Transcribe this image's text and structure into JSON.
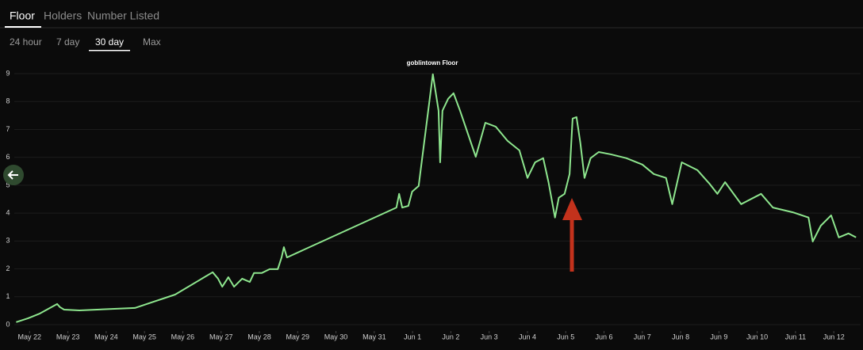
{
  "tabs": [
    "Floor",
    "Holders",
    "Number Listed"
  ],
  "active_tab": 0,
  "ranges": [
    "24 hour",
    "7 day",
    "30 day",
    "Max"
  ],
  "active_range": 2,
  "chart_data": {
    "type": "line",
    "title": "goblintown Floor",
    "color": "#8ee68e",
    "grid": true,
    "x": [
      21.65,
      21.96,
      22.27,
      22.72,
      22.79,
      22.9,
      23.3,
      24.75,
      25.8,
      26.78,
      26.92,
      27.03,
      27.19,
      27.34,
      27.55,
      27.75,
      27.86,
      28.06,
      28.27,
      28.48,
      28.58,
      28.64,
      28.72,
      31.58,
      31.65,
      31.73,
      31.89,
      31.99,
      32.16,
      32.53,
      32.68,
      32.72,
      32.78,
      32.93,
      33.07,
      33.24,
      33.65,
      33.9,
      34.17,
      34.48,
      34.79,
      35.0,
      35.2,
      35.41,
      35.55,
      35.72,
      35.82,
      35.97,
      36.1,
      36.18,
      36.28,
      36.38,
      36.49,
      36.65,
      36.86,
      37.17,
      37.58,
      38.0,
      38.3,
      38.62,
      38.78,
      39.03,
      39.44,
      39.75,
      39.96,
      40.16,
      40.58,
      41.1,
      41.41,
      41.93,
      42.34,
      42.45,
      42.66,
      42.93,
      43.13,
      43.38,
      43.58
    ],
    "values": [
      0.09,
      0.23,
      0.4,
      0.74,
      0.63,
      0.54,
      0.51,
      0.6,
      1.08,
      1.88,
      1.65,
      1.36,
      1.7,
      1.36,
      1.65,
      1.53,
      1.85,
      1.85,
      1.99,
      1.99,
      2.41,
      2.78,
      2.41,
      4.2,
      4.69,
      4.2,
      4.26,
      4.77,
      4.97,
      8.98,
      7.67,
      5.82,
      7.67,
      8.1,
      8.3,
      7.67,
      6.02,
      7.24,
      7.1,
      6.59,
      6.25,
      5.26,
      5.82,
      5.97,
      5.11,
      3.84,
      4.55,
      4.69,
      5.4,
      7.39,
      7.44,
      6.53,
      5.26,
      5.97,
      6.19,
      6.11,
      5.97,
      5.74,
      5.4,
      5.26,
      4.32,
      5.82,
      5.54,
      5.06,
      4.69,
      5.11,
      4.32,
      4.69,
      4.2,
      4.03,
      3.84,
      2.98,
      3.55,
      3.92,
      3.13,
      3.27,
      3.13
    ],
    "xlim": [
      21.6,
      43.7
    ],
    "xticks": [
      {
        "value": 22,
        "label": "May 22"
      },
      {
        "value": 23,
        "label": "May 23"
      },
      {
        "value": 24,
        "label": "May 24"
      },
      {
        "value": 25,
        "label": "May 25"
      },
      {
        "value": 26,
        "label": "May 26"
      },
      {
        "value": 27,
        "label": "May 27"
      },
      {
        "value": 28,
        "label": "May 28"
      },
      {
        "value": 29,
        "label": "May 29"
      },
      {
        "value": 30,
        "label": "May 30"
      },
      {
        "value": 31,
        "label": "May 31"
      },
      {
        "value": 32,
        "label": "Jun 1"
      },
      {
        "value": 33,
        "label": "Jun 2"
      },
      {
        "value": 34,
        "label": "Jun 3"
      },
      {
        "value": 35,
        "label": "Jun 4"
      },
      {
        "value": 36,
        "label": "Jun 5"
      },
      {
        "value": 37,
        "label": "Jun 6"
      },
      {
        "value": 38,
        "label": "Jun 7"
      },
      {
        "value": 39,
        "label": "Jun 8"
      },
      {
        "value": 40,
        "label": "Jun 9"
      },
      {
        "value": 41,
        "label": "Jun 10"
      },
      {
        "value": 42,
        "label": "Jun 11"
      },
      {
        "value": 43,
        "label": "Jun 12"
      }
    ],
    "ylim": [
      0,
      9
    ],
    "yticks": [
      0,
      1,
      2,
      3,
      4,
      5,
      6,
      7,
      8,
      9
    ]
  }
}
